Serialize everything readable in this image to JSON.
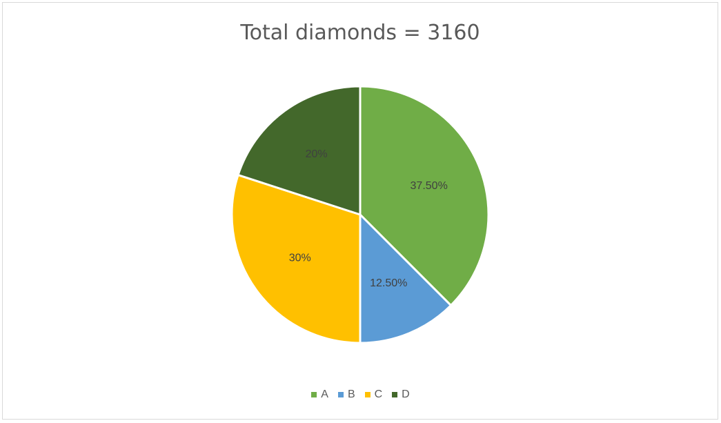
{
  "chart_data": {
    "type": "pie",
    "title": "Total diamonds = 3160",
    "categories": [
      "A",
      "B",
      "C",
      "D"
    ],
    "values": [
      37.5,
      12.5,
      30,
      20
    ],
    "data_labels": [
      "37.50%",
      "12.50%",
      "30%",
      "20%"
    ],
    "colors": [
      "#70ad47",
      "#5b9bd5",
      "#ffc000",
      "#43682b"
    ],
    "legend_position": "bottom"
  }
}
